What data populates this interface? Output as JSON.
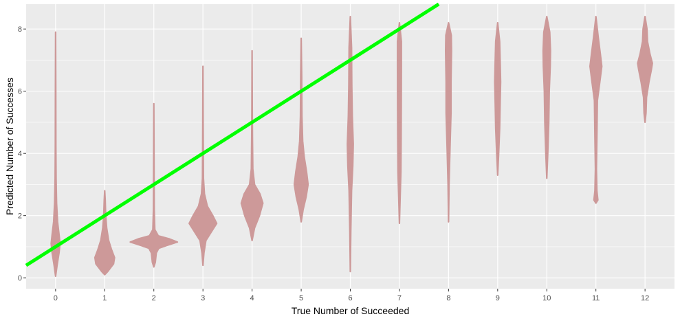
{
  "chart_data": {
    "type": "violin",
    "title": "",
    "xlabel": "True Number of Succeeded",
    "ylabel": "Predicted Number of Successes",
    "x_categories": [
      "0",
      "1",
      "2",
      "3",
      "4",
      "5",
      "6",
      "7",
      "8",
      "9",
      "10",
      "11",
      "12"
    ],
    "y_ticks": [
      0,
      2,
      4,
      6,
      8
    ],
    "xlim": [
      -0.6,
      12.6
    ],
    "ylim": [
      -0.35,
      8.8
    ],
    "grid": true,
    "colors": {
      "panel_background": "#ebebeb",
      "grid_line": "#ffffff",
      "violin_fill": "#cd9999",
      "reference_line": "#00ff00",
      "tick_label": "#4d4d4d",
      "axis_title": "#000000"
    },
    "reference_line": {
      "intercept": 1,
      "slope": 1
    },
    "violins": [
      {
        "x": 0,
        "y_min": 0.05,
        "y_max": 7.9,
        "profile": [
          [
            0.05,
            0.0
          ],
          [
            0.4,
            0.03
          ],
          [
            0.8,
            0.07
          ],
          [
            1.1,
            0.09
          ],
          [
            1.4,
            0.07
          ],
          [
            1.8,
            0.04
          ],
          [
            2.4,
            0.02
          ],
          [
            3.2,
            0.01
          ],
          [
            4.2,
            0.006
          ],
          [
            6.0,
            0.004
          ],
          [
            7.9,
            0.0
          ]
        ]
      },
      {
        "x": 1,
        "y_min": 0.1,
        "y_max": 2.8,
        "profile": [
          [
            0.1,
            0.0
          ],
          [
            0.2,
            0.06
          ],
          [
            0.45,
            0.18
          ],
          [
            0.65,
            0.2
          ],
          [
            0.9,
            0.14
          ],
          [
            1.2,
            0.08
          ],
          [
            1.6,
            0.04
          ],
          [
            2.0,
            0.02
          ],
          [
            2.5,
            0.01
          ],
          [
            2.8,
            0.0
          ]
        ]
      },
      {
        "x": 2,
        "y_min": 0.35,
        "y_max": 5.6,
        "profile": [
          [
            0.35,
            0.0
          ],
          [
            0.5,
            0.03
          ],
          [
            0.8,
            0.05
          ],
          [
            0.95,
            0.1
          ],
          [
            1.05,
            0.28
          ],
          [
            1.15,
            0.48
          ],
          [
            1.25,
            0.32
          ],
          [
            1.35,
            0.09
          ],
          [
            1.55,
            0.02
          ],
          [
            2.2,
            0.008
          ],
          [
            5.6,
            0.0
          ]
        ]
      },
      {
        "x": 3,
        "y_min": 0.4,
        "y_max": 6.8,
        "profile": [
          [
            0.4,
            0.0
          ],
          [
            0.8,
            0.02
          ],
          [
            1.2,
            0.06
          ],
          [
            1.5,
            0.18
          ],
          [
            1.75,
            0.28
          ],
          [
            2.0,
            0.2
          ],
          [
            2.3,
            0.09
          ],
          [
            2.7,
            0.03
          ],
          [
            3.2,
            0.01
          ],
          [
            5.0,
            0.004
          ],
          [
            6.8,
            0.0
          ]
        ]
      },
      {
        "x": 4,
        "y_min": 1.2,
        "y_max": 7.3,
        "profile": [
          [
            1.2,
            0.0
          ],
          [
            1.6,
            0.05
          ],
          [
            2.0,
            0.15
          ],
          [
            2.4,
            0.22
          ],
          [
            2.7,
            0.16
          ],
          [
            3.0,
            0.05
          ],
          [
            3.5,
            0.015
          ],
          [
            4.5,
            0.008
          ],
          [
            5.5,
            0.004
          ],
          [
            7.3,
            0.0
          ]
        ]
      },
      {
        "x": 5,
        "y_min": 1.8,
        "y_max": 7.7,
        "profile": [
          [
            1.8,
            0.0
          ],
          [
            2.2,
            0.04
          ],
          [
            2.6,
            0.1
          ],
          [
            3.0,
            0.14
          ],
          [
            3.4,
            0.11
          ],
          [
            3.9,
            0.06
          ],
          [
            4.4,
            0.03
          ],
          [
            5.2,
            0.015
          ],
          [
            6.5,
            0.01
          ],
          [
            7.7,
            0.0
          ]
        ]
      },
      {
        "x": 6,
        "y_min": 0.2,
        "y_max": 8.4,
        "profile": [
          [
            0.2,
            0.0
          ],
          [
            1.5,
            0.01
          ],
          [
            2.8,
            0.025
          ],
          [
            3.6,
            0.05
          ],
          [
            4.3,
            0.06
          ],
          [
            5.2,
            0.04
          ],
          [
            6.2,
            0.03
          ],
          [
            7.4,
            0.025
          ],
          [
            8.4,
            0.0
          ]
        ]
      },
      {
        "x": 7,
        "y_min": 1.75,
        "y_max": 8.2,
        "profile": [
          [
            1.75,
            0.0
          ],
          [
            2.6,
            0.015
          ],
          [
            3.4,
            0.03
          ],
          [
            4.5,
            0.035
          ],
          [
            5.6,
            0.038
          ],
          [
            6.8,
            0.04
          ],
          [
            7.6,
            0.04
          ],
          [
            8.2,
            0.0
          ]
        ]
      },
      {
        "x": 8,
        "y_min": 1.8,
        "y_max": 8.2,
        "profile": [
          [
            1.8,
            0.0
          ],
          [
            3.0,
            0.01
          ],
          [
            4.2,
            0.03
          ],
          [
            5.3,
            0.05
          ],
          [
            6.3,
            0.05
          ],
          [
            7.3,
            0.06
          ],
          [
            7.8,
            0.055
          ],
          [
            8.2,
            0.0
          ]
        ]
      },
      {
        "x": 9,
        "y_min": 3.3,
        "y_max": 8.2,
        "profile": [
          [
            3.3,
            0.0
          ],
          [
            4.0,
            0.02
          ],
          [
            4.8,
            0.04
          ],
          [
            5.6,
            0.05
          ],
          [
            6.3,
            0.06
          ],
          [
            7.0,
            0.05
          ],
          [
            7.6,
            0.04
          ],
          [
            8.2,
            0.0
          ]
        ]
      },
      {
        "x": 10,
        "y_min": 3.2,
        "y_max": 8.4,
        "profile": [
          [
            3.2,
            0.0
          ],
          [
            4.0,
            0.02
          ],
          [
            5.0,
            0.04
          ],
          [
            6.0,
            0.05
          ],
          [
            6.8,
            0.07
          ],
          [
            7.3,
            0.075
          ],
          [
            7.9,
            0.06
          ],
          [
            8.4,
            0.0
          ]
        ]
      },
      {
        "x": 11,
        "y_min": 2.4,
        "y_max": 8.4,
        "profile": [
          [
            2.4,
            0.0
          ],
          [
            2.5,
            0.04
          ],
          [
            2.8,
            0.02
          ],
          [
            3.5,
            0.01
          ],
          [
            4.5,
            0.02
          ],
          [
            5.7,
            0.03
          ],
          [
            6.3,
            0.08
          ],
          [
            6.8,
            0.12
          ],
          [
            7.2,
            0.09
          ],
          [
            7.7,
            0.05
          ],
          [
            8.4,
            0.0
          ]
        ]
      },
      {
        "x": 12,
        "y_min": 5.0,
        "y_max": 8.4,
        "profile": [
          [
            5.0,
            0.0
          ],
          [
            5.3,
            0.02
          ],
          [
            5.8,
            0.03
          ],
          [
            6.3,
            0.08
          ],
          [
            6.7,
            0.13
          ],
          [
            6.9,
            0.15
          ],
          [
            7.2,
            0.1
          ],
          [
            7.6,
            0.05
          ],
          [
            8.0,
            0.04
          ],
          [
            8.4,
            0.0
          ]
        ]
      }
    ]
  }
}
